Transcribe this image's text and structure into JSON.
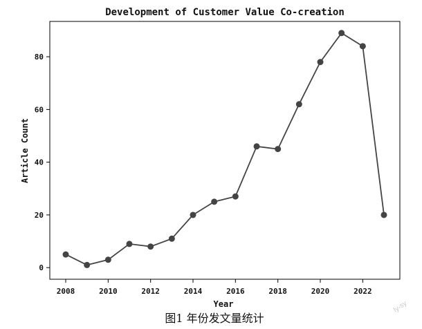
{
  "caption": "图1 年份发文量统计",
  "watermark": "ly-sy",
  "chart_data": {
    "type": "line",
    "title": "Development of Customer Value Co-creation",
    "xlabel": "Year",
    "ylabel": "Article Count",
    "x": [
      2008,
      2009,
      2010,
      2011,
      2012,
      2013,
      2014,
      2015,
      2016,
      2017,
      2018,
      2019,
      2020,
      2021,
      2022,
      2023
    ],
    "series": [
      {
        "values": [
          5,
          1,
          3,
          9,
          8,
          11,
          20,
          25,
          27,
          46,
          45,
          62,
          78,
          89,
          84,
          20
        ]
      }
    ],
    "xticks": [
      2008,
      2010,
      2012,
      2014,
      2016,
      2018,
      2020,
      2022
    ],
    "yticks": [
      0,
      20,
      40,
      60,
      80
    ],
    "xlim": [
      2007.25,
      2023.75
    ],
    "ylim": [
      -4.4,
      93.4
    ],
    "grid": false,
    "line_color": "#444444",
    "marker_color": "#444444"
  }
}
